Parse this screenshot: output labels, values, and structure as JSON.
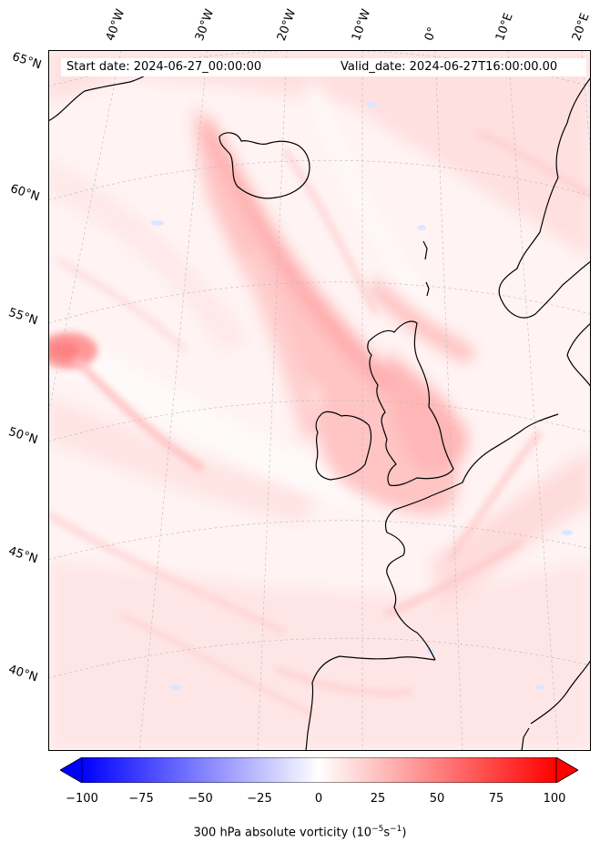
{
  "header": {
    "start_date": "Start date: 2024-06-27_00:00:00",
    "valid_date": "Valid_date: 2024-06-27T16:00:00.00"
  },
  "map": {
    "field": "300 hPa absolute vorticity",
    "longitude_labels": [
      "40°W",
      "30°W",
      "20°W",
      "10°W",
      "0°",
      "10°E",
      "20°E"
    ],
    "latitude_labels": [
      "65°N",
      "60°N",
      "55°N",
      "50°N",
      "45°N",
      "40°N"
    ],
    "coastlines": "black",
    "gridlines": "dashed-grey"
  },
  "colorbar": {
    "colormap": "bwr",
    "min_color": "#0000ff",
    "mid_color": "#ffffff",
    "max_color": "#ff0000",
    "range": [
      -100,
      100
    ],
    "extend": "both",
    "ticks": [
      "−100",
      "−75",
      "−50",
      "−25",
      "0",
      "25",
      "50",
      "75",
      "100"
    ],
    "label_prefix": "300 hPa absolute vorticity (10",
    "label_exp1": "−5",
    "label_mid": "s",
    "label_exp2": "−1",
    "label_suffix": ")"
  }
}
